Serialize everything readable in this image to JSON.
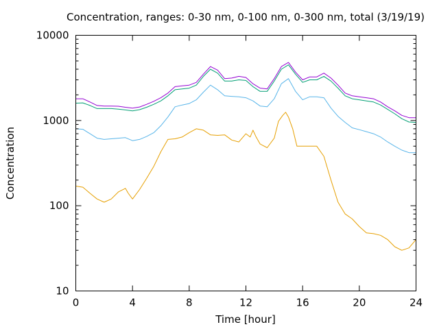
{
  "chart_data": {
    "type": "line",
    "title": "Concentration, ranges: 0-30 nm, 0-100 nm, 0-300 nm, total (3/19/19)",
    "xlabel": "Time [hour]",
    "ylabel": "Concentration",
    "xlim": [
      0,
      24
    ],
    "ylim": [
      10,
      10000
    ],
    "yscale": "log",
    "grid": false,
    "legend": "none",
    "x_ticks": [
      {
        "value": 0,
        "label": "0"
      },
      {
        "value": 4,
        "label": "4"
      },
      {
        "value": 8,
        "label": "8"
      },
      {
        "value": 12,
        "label": "12"
      },
      {
        "value": 16,
        "label": "16"
      },
      {
        "value": 20,
        "label": "20"
      },
      {
        "value": 24,
        "label": "24"
      }
    ],
    "y_ticks": [
      {
        "value": 10,
        "label": "10"
      },
      {
        "value": 100,
        "label": "100"
      },
      {
        "value": 1000,
        "label": "1000"
      },
      {
        "value": 10000,
        "label": "10000"
      }
    ],
    "series": [
      {
        "color": "#e69f00",
        "x": [
          0,
          0.5,
          1,
          1.5,
          2,
          2.5,
          3,
          3.5,
          3.7,
          4,
          4.5,
          5,
          5.5,
          6,
          6.5,
          7,
          7.5,
          8,
          8.5,
          9,
          9.5,
          10,
          10.5,
          11,
          11.5,
          12,
          12.3,
          12.5,
          12.7,
          13,
          13.5,
          14,
          14.3,
          14.6,
          14.8,
          15,
          15.3,
          15.6,
          16,
          16.5,
          17,
          17.5,
          18,
          18.5,
          19,
          19.5,
          20,
          20.5,
          21,
          21.5,
          22,
          22.5,
          23,
          23.5,
          24
        ],
        "y": [
          170,
          165,
          140,
          120,
          110,
          120,
          145,
          160,
          140,
          120,
          155,
          210,
          290,
          430,
          600,
          610,
          640,
          720,
          800,
          770,
          680,
          670,
          680,
          590,
          560,
          700,
          640,
          770,
          650,
          530,
          480,
          620,
          980,
          1150,
          1250,
          1100,
          800,
          500,
          500,
          500,
          500,
          380,
          200,
          110,
          80,
          70,
          57,
          48,
          47,
          45,
          40,
          33,
          30,
          32,
          40
        ]
      },
      {
        "color": "#56b4e9",
        "x": [
          0,
          0.5,
          1,
          1.5,
          2,
          2.5,
          3,
          3.5,
          4,
          4.5,
          5,
          5.5,
          6,
          6.5,
          7,
          7.5,
          8,
          8.5,
          9,
          9.5,
          10,
          10.5,
          11,
          11.5,
          12,
          12.5,
          13,
          13.5,
          14,
          14.5,
          15,
          15.5,
          16,
          16.5,
          17,
          17.5,
          18,
          18.5,
          19,
          19.5,
          20,
          20.5,
          21,
          21.5,
          22,
          22.5,
          23,
          23.5,
          24
        ],
        "y": [
          800,
          790,
          700,
          620,
          600,
          610,
          620,
          630,
          580,
          600,
          650,
          720,
          870,
          1100,
          1450,
          1520,
          1580,
          1750,
          2150,
          2600,
          2300,
          1950,
          1920,
          1900,
          1850,
          1700,
          1480,
          1450,
          1800,
          2700,
          3100,
          2200,
          1750,
          1900,
          1900,
          1850,
          1400,
          1120,
          950,
          820,
          780,
          740,
          700,
          640,
          560,
          500,
          450,
          420,
          420
        ]
      },
      {
        "color": "#009e73",
        "x": [
          0,
          0.5,
          1,
          1.5,
          2,
          2.5,
          3,
          3.5,
          4,
          4.5,
          5,
          5.5,
          6,
          6.5,
          7,
          7.5,
          8,
          8.5,
          9,
          9.5,
          10,
          10.5,
          11,
          11.5,
          12,
          12.5,
          13,
          13.5,
          14,
          14.5,
          15,
          15.5,
          16,
          16.5,
          17,
          17.5,
          18,
          18.5,
          19,
          19.5,
          20,
          20.5,
          21,
          21.5,
          22,
          22.5,
          23,
          23.5,
          24
        ],
        "y": [
          1600,
          1610,
          1500,
          1380,
          1380,
          1380,
          1360,
          1330,
          1300,
          1340,
          1430,
          1550,
          1700,
          1950,
          2300,
          2350,
          2400,
          2600,
          3300,
          4000,
          3600,
          2900,
          2900,
          3000,
          2950,
          2500,
          2200,
          2200,
          2900,
          4000,
          4500,
          3500,
          2800,
          3000,
          3000,
          3300,
          2900,
          2400,
          1950,
          1800,
          1750,
          1700,
          1650,
          1520,
          1350,
          1200,
          1050,
          960,
          950
        ]
      },
      {
        "color": "#9400d3",
        "x": [
          0,
          0.5,
          1,
          1.5,
          2,
          2.5,
          3,
          3.5,
          4,
          4.5,
          5,
          5.5,
          6,
          6.5,
          7,
          7.5,
          8,
          8.5,
          9,
          9.5,
          10,
          10.5,
          11,
          11.5,
          12,
          12.5,
          13,
          13.5,
          14,
          14.5,
          15,
          15.5,
          16,
          16.5,
          17,
          17.5,
          18,
          18.5,
          19,
          19.5,
          20,
          20.5,
          21,
          21.5,
          22,
          22.5,
          23,
          23.5,
          24
        ],
        "y": [
          1800,
          1800,
          1650,
          1500,
          1480,
          1480,
          1470,
          1430,
          1400,
          1440,
          1550,
          1680,
          1850,
          2100,
          2500,
          2550,
          2600,
          2800,
          3500,
          4300,
          3900,
          3100,
          3150,
          3300,
          3200,
          2700,
          2400,
          2350,
          3100,
          4300,
          4800,
          3700,
          3000,
          3250,
          3250,
          3600,
          3150,
          2600,
          2100,
          1950,
          1900,
          1850,
          1800,
          1650,
          1450,
          1300,
          1150,
          1080,
          1080
        ]
      }
    ]
  }
}
